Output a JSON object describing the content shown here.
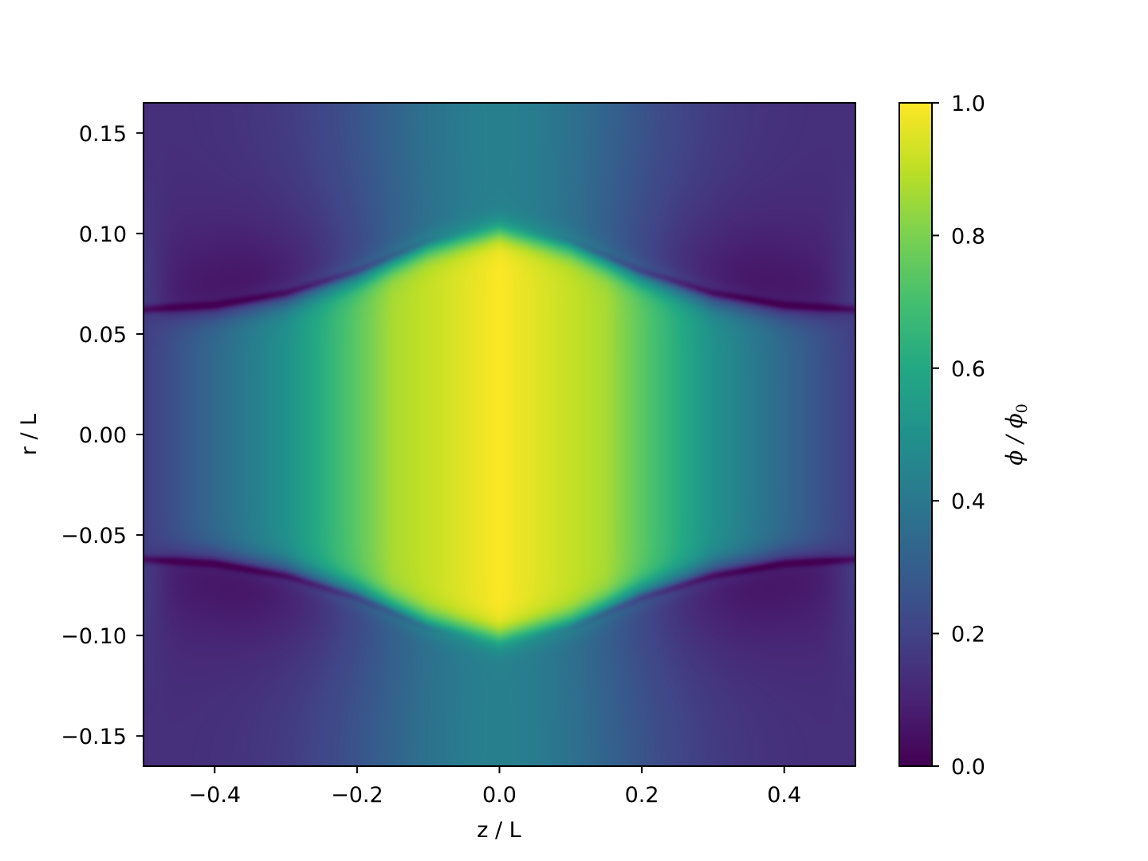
{
  "chart_data": {
    "type": "heatmap",
    "title": "",
    "xlabel": "z / L",
    "ylabel": "r / L",
    "xlim": [
      -0.5,
      0.5
    ],
    "ylim": [
      -0.165,
      0.165
    ],
    "x_ticks": [
      -0.4,
      -0.2,
      0.0,
      0.2,
      0.4
    ],
    "x_tick_labels": [
      "−0.4",
      "−0.2",
      "0.0",
      "0.2",
      "0.4"
    ],
    "y_ticks": [
      0.15,
      0.1,
      0.05,
      0.0,
      -0.05,
      -0.1,
      -0.15
    ],
    "y_tick_labels": [
      "0.15",
      "0.10",
      "0.05",
      "0.00",
      "−0.05",
      "−0.10",
      "−0.15"
    ],
    "colormap": "viridis",
    "colorbar": {
      "label": "ϕ / ϕ",
      "label_subscript": "0",
      "range": [
        0.0,
        1.0
      ],
      "ticks": [
        0.0,
        0.2,
        0.4,
        0.6,
        0.8,
        1.0
      ],
      "tick_labels": [
        "0.0",
        "0.2",
        "0.4",
        "0.6",
        "0.8",
        "1.0"
      ]
    },
    "field": {
      "description": "Axisymmetric field phi/phi0 over (z, r); bright core bounded by a curved interface r = R(z)",
      "interface_radius": [
        {
          "z": -0.5,
          "r": 0.058
        },
        {
          "z": -0.4,
          "r": 0.06
        },
        {
          "z": -0.3,
          "r": 0.066
        },
        {
          "z": -0.2,
          "r": 0.077
        },
        {
          "z": -0.1,
          "r": 0.092
        },
        {
          "z": 0.0,
          "r": 0.101
        },
        {
          "z": 0.1,
          "r": 0.092
        },
        {
          "z": 0.2,
          "r": 0.077
        },
        {
          "z": 0.3,
          "r": 0.066
        },
        {
          "z": 0.4,
          "r": 0.06
        },
        {
          "z": 0.5,
          "r": 0.058
        }
      ],
      "core_profile_along_axis": [
        {
          "z": -0.5,
          "value": 0.18
        },
        {
          "z": -0.3,
          "value": 0.5
        },
        {
          "z": -0.15,
          "value": 0.87
        },
        {
          "z": 0.0,
          "value": 1.0
        },
        {
          "z": 0.15,
          "value": 0.87
        },
        {
          "z": 0.3,
          "value": 0.5
        },
        {
          "z": 0.5,
          "value": 0.18
        }
      ],
      "outer_minimum_value": 0.0,
      "outer_center_column_value": 0.3
    }
  }
}
